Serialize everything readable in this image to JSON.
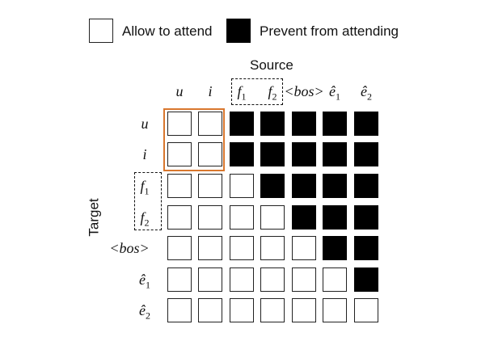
{
  "legend": {
    "allow_label": "Allow to attend",
    "prevent_label": "Prevent from attending"
  },
  "axis": {
    "source_title": "Source",
    "target_title": "Target"
  },
  "tokens": [
    {
      "base": "u",
      "sub": "",
      "style": "italic"
    },
    {
      "base": "i",
      "sub": "",
      "style": "italic"
    },
    {
      "base": "f",
      "sub": "1",
      "style": "italic"
    },
    {
      "base": "f",
      "sub": "2",
      "style": "italic"
    },
    {
      "base": "<bos>",
      "sub": "",
      "style": "italic"
    },
    {
      "base": "ê",
      "sub": "1",
      "style": "italic"
    },
    {
      "base": "ê",
      "sub": "2",
      "style": "italic"
    }
  ],
  "mask": [
    [
      0,
      0,
      1,
      1,
      1,
      1,
      1
    ],
    [
      0,
      0,
      1,
      1,
      1,
      1,
      1
    ],
    [
      0,
      0,
      0,
      1,
      1,
      1,
      1
    ],
    [
      0,
      0,
      0,
      0,
      1,
      1,
      1
    ],
    [
      0,
      0,
      0,
      0,
      0,
      1,
      1
    ],
    [
      0,
      0,
      0,
      0,
      0,
      0,
      1
    ],
    [
      0,
      0,
      0,
      0,
      0,
      0,
      0
    ]
  ],
  "colors": {
    "allowed": "#ffffff",
    "blocked": "#000000",
    "highlight": "#d9772e"
  }
}
